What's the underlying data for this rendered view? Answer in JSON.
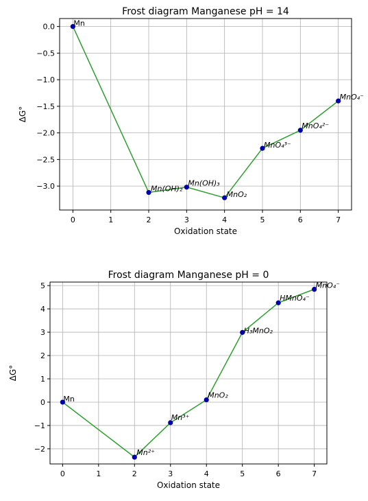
{
  "chart_data": [
    {
      "type": "line",
      "title": "Frost diagram Manganese pH = 14",
      "xlabel": "Oxidation state",
      "ylabel": "ΔG°",
      "xlim": [
        -0.35,
        7.35
      ],
      "ylim": [
        -3.45,
        0.15
      ],
      "xticks": [
        0,
        1,
        2,
        3,
        4,
        5,
        6,
        7
      ],
      "yticks": [
        0.0,
        -0.5,
        -1.0,
        -1.5,
        -2.0,
        -2.5,
        -3.0
      ],
      "ytick_labels": [
        "0.0",
        "−0.5",
        "−1.0",
        "−1.5",
        "−2.0",
        "−2.5",
        "−3.0"
      ],
      "grid": true,
      "line_color": "#2ca02c",
      "marker_color": "#0000aa",
      "points": [
        {
          "x": 0,
          "y": 0.0,
          "label": "Mn"
        },
        {
          "x": 2,
          "y": -3.12,
          "label": "Mn(OH)₂"
        },
        {
          "x": 3,
          "y": -3.02,
          "label": "Mn(OH)₃"
        },
        {
          "x": 4,
          "y": -3.22,
          "label": "MnO₂"
        },
        {
          "x": 5,
          "y": -2.29,
          "label": "MnO₄³⁻"
        },
        {
          "x": 6,
          "y": -1.95,
          "label": "MnO₄²⁻"
        },
        {
          "x": 7,
          "y": -1.4,
          "label": "MnO₄⁻"
        }
      ]
    },
    {
      "type": "line",
      "title": "Frost diagram Manganese pH = 0",
      "xlabel": "Oxidation state",
      "ylabel": "ΔG°",
      "xlim": [
        -0.35,
        7.35
      ],
      "ylim": [
        -2.65,
        5.15
      ],
      "xticks": [
        0,
        1,
        2,
        3,
        4,
        5,
        6,
        7
      ],
      "yticks": [
        5,
        4,
        3,
        2,
        1,
        0,
        -1,
        -2
      ],
      "ytick_labels": [
        "5",
        "4",
        "3",
        "2",
        "1",
        "0",
        "−1",
        "−2"
      ],
      "grid": true,
      "line_color": "#2ca02c",
      "marker_color": "#0000aa",
      "points": [
        {
          "x": 0,
          "y": 0.0,
          "label": "Mn"
        },
        {
          "x": 2,
          "y": -2.36,
          "label": "Mn²⁺"
        },
        {
          "x": 3,
          "y": -0.88,
          "label": "Mn³⁺"
        },
        {
          "x": 4,
          "y": 0.1,
          "label": "MnO₂"
        },
        {
          "x": 5,
          "y": 2.99,
          "label": "H₃MnO₂"
        },
        {
          "x": 6,
          "y": 4.26,
          "label": "HMnO₄⁻"
        },
        {
          "x": 7,
          "y": 4.84,
          "label": "MnO₄⁻"
        }
      ]
    }
  ]
}
